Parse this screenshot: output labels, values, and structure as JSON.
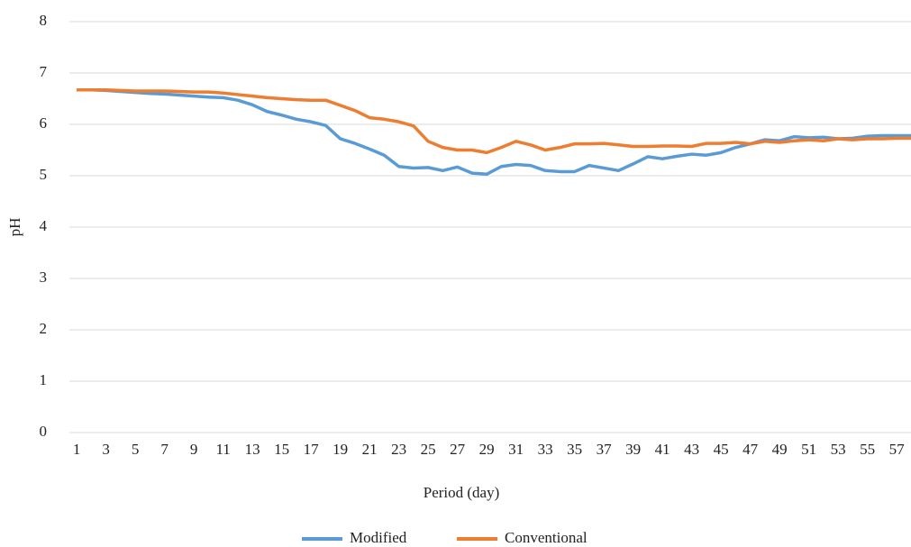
{
  "chart_data": {
    "type": "line",
    "x_label": "Period (day)",
    "y_label": "pH",
    "categories": [
      "1",
      null,
      "3",
      null,
      "5",
      null,
      "7",
      null,
      "9",
      null,
      "11",
      null,
      "13",
      null,
      "15",
      null,
      "17",
      null,
      "19",
      null,
      "21",
      null,
      "23",
      null,
      "25",
      null,
      "27",
      null,
      "29",
      null,
      "31",
      null,
      "33",
      null,
      "35",
      null,
      "37",
      null,
      "39",
      null,
      "41",
      null,
      "43",
      null,
      "45",
      null,
      "47",
      null,
      "49",
      null,
      "51",
      null,
      "53",
      null,
      "55",
      null,
      "57",
      null
    ],
    "series": [
      {
        "name": "Modified",
        "color": "#5b9bd5",
        "values": [
          6.67,
          6.67,
          6.66,
          6.64,
          6.62,
          6.6,
          6.59,
          6.57,
          6.55,
          6.53,
          6.52,
          6.47,
          6.38,
          6.25,
          6.18,
          6.1,
          6.05,
          5.98,
          5.72,
          5.63,
          5.52,
          5.4,
          5.18,
          5.15,
          5.16,
          5.1,
          5.17,
          5.05,
          5.03,
          5.18,
          5.22,
          5.2,
          5.1,
          5.08,
          5.08,
          5.2,
          5.15,
          5.1,
          5.23,
          5.37,
          5.33,
          5.38,
          5.42,
          5.4,
          5.45,
          5.55,
          5.62,
          5.7,
          5.68,
          5.76,
          5.74,
          5.75,
          5.72,
          5.73,
          5.77,
          5.78,
          5.78,
          5.78
        ]
      },
      {
        "name": "Conventional",
        "color": "#ed7d31",
        "values": [
          6.67,
          6.67,
          6.67,
          6.66,
          6.65,
          6.65,
          6.65,
          6.64,
          6.63,
          6.63,
          6.61,
          6.58,
          6.55,
          6.52,
          6.5,
          6.48,
          6.47,
          6.47,
          6.37,
          6.27,
          6.13,
          6.1,
          6.05,
          5.97,
          5.67,
          5.55,
          5.5,
          5.5,
          5.45,
          5.55,
          5.67,
          5.6,
          5.5,
          5.55,
          5.62,
          5.62,
          5.63,
          5.6,
          5.57,
          5.57,
          5.58,
          5.58,
          5.57,
          5.63,
          5.63,
          5.65,
          5.62,
          5.67,
          5.65,
          5.68,
          5.7,
          5.68,
          5.72,
          5.7,
          5.72,
          5.72,
          5.73,
          5.73
        ]
      }
    ],
    "ylim": [
      0,
      8
    ],
    "yticks": [
      0,
      1,
      2,
      3,
      4,
      5,
      6,
      7,
      8
    ],
    "grid": true,
    "legend": "bottom"
  }
}
